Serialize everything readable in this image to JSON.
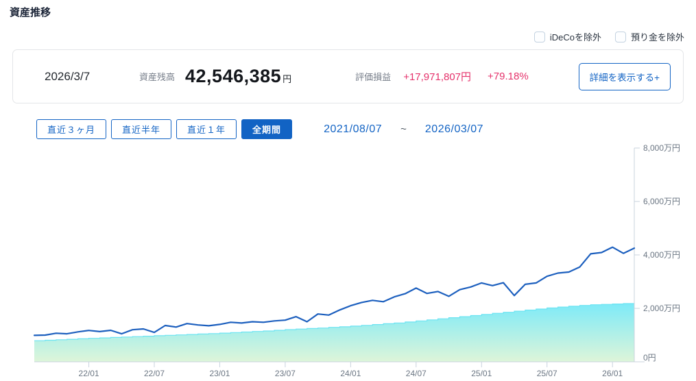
{
  "page": {
    "title": "資産推移"
  },
  "filters": {
    "checkboxes": [
      {
        "label": "iDeCoを除外",
        "checked": false
      },
      {
        "label": "預り金を除外",
        "checked": false
      }
    ]
  },
  "summary": {
    "date": "2026/3/7",
    "balance_label": "資産残高",
    "balance_value": "42,546,385",
    "balance_unit": "円",
    "pl_label": "評価損益",
    "pl_amount": "+17,971,807円",
    "pl_percent": "+79.18%",
    "detail_button": "詳細を表示する+"
  },
  "period": {
    "buttons": [
      {
        "label": "直近３ヶ月",
        "active": false
      },
      {
        "label": "直近半年",
        "active": false
      },
      {
        "label": "直近１年",
        "active": false
      },
      {
        "label": "全期間",
        "active": true
      }
    ],
    "range_start": "2021/08/07",
    "range_separator": "~",
    "range_end": "2026/03/07"
  },
  "colors": {
    "accent_blue": "#1263c4",
    "pl_pink": "#e5326b",
    "line_blue": "#1c5fbe",
    "area_top": "#7deaf8",
    "area_edge": "#6ce4f2",
    "area_bottom": "#def5d9",
    "axis": "#c9d3de",
    "tick_text": "#6b7683"
  },
  "chart_data": {
    "type": "line+area",
    "title": "資産推移",
    "unit": "万円",
    "x_start": "2021/08",
    "x_end": "2026/03",
    "x_tick_labels": [
      "22/01",
      "22/07",
      "23/01",
      "23/07",
      "24/01",
      "24/07",
      "25/01",
      "25/07",
      "26/01"
    ],
    "x_tick_indices": [
      5,
      11,
      17,
      23,
      29,
      35,
      41,
      47,
      53
    ],
    "y_tick_values": [
      0,
      2000,
      4000,
      6000,
      8000
    ],
    "y_tick_labels": [
      "0円",
      "2,000万円",
      "4,000万円",
      "6,000万円",
      "8,000万円"
    ],
    "ylim": [
      0,
      8000
    ],
    "grid": false,
    "legend": "none",
    "series": [
      {
        "id": "assets-line",
        "type": "line",
        "values": [
          990,
          1000,
          1070,
          1050,
          1120,
          1175,
          1130,
          1180,
          1050,
          1200,
          1230,
          1100,
          1360,
          1300,
          1430,
          1380,
          1350,
          1400,
          1480,
          1450,
          1500,
          1480,
          1530,
          1560,
          1690,
          1500,
          1790,
          1750,
          1940,
          2100,
          2220,
          2300,
          2250,
          2430,
          2550,
          2760,
          2560,
          2630,
          2450,
          2700,
          2800,
          2950,
          2850,
          2960,
          2480,
          2900,
          2950,
          3200,
          3320,
          3360,
          3550,
          4040,
          4090,
          4290,
          4060,
          4254
        ]
      },
      {
        "id": "principal-area",
        "type": "step-area",
        "values": [
          790,
          808,
          826,
          844,
          862,
          880,
          896,
          912,
          928,
          944,
          960,
          976,
          992,
          1008,
          1024,
          1040,
          1056,
          1075,
          1095,
          1115,
          1135,
          1155,
          1180,
          1205,
          1225,
          1245,
          1265,
          1290,
          1310,
          1335,
          1365,
          1395,
          1425,
          1455,
          1490,
          1530,
          1570,
          1610,
          1650,
          1690,
          1730,
          1775,
          1815,
          1855,
          1895,
          1935,
          1975,
          2015,
          2050,
          2080,
          2110,
          2135,
          2150,
          2165,
          2180,
          2190
        ]
      }
    ]
  }
}
